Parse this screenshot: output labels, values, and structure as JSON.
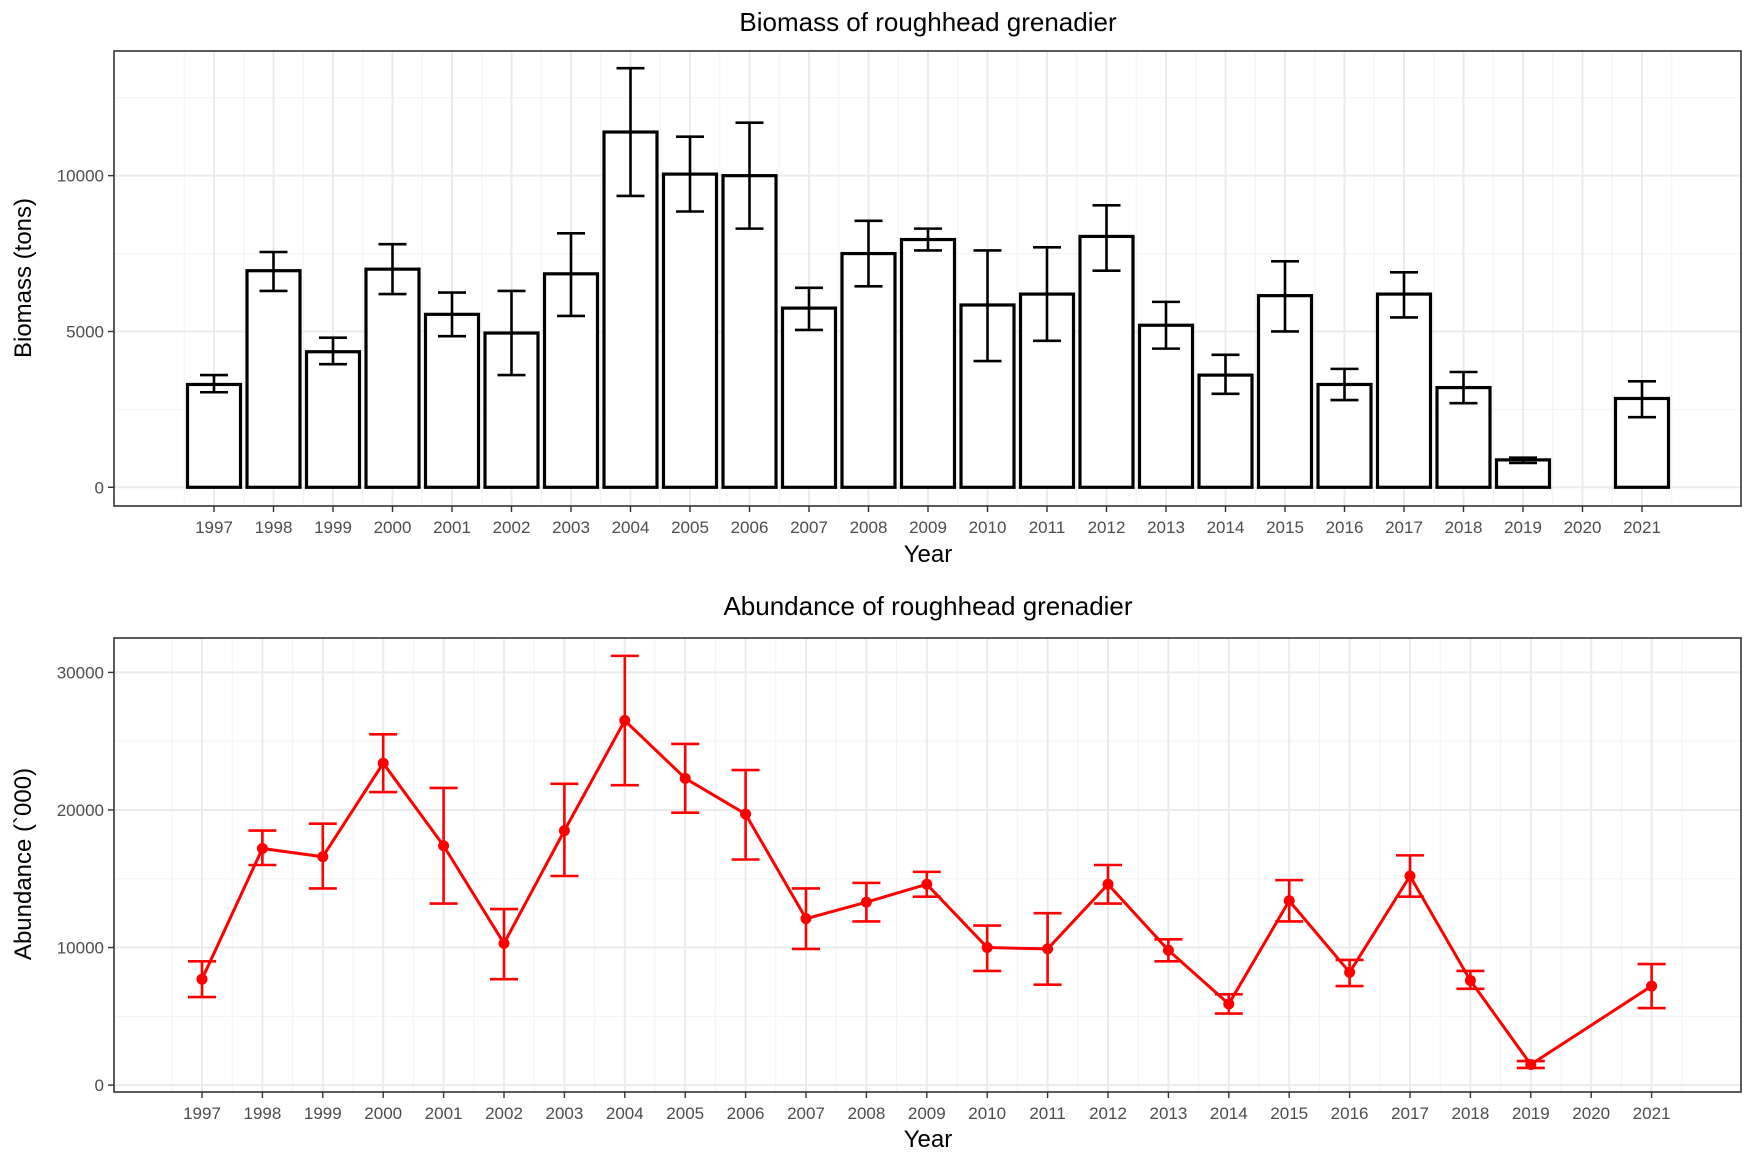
{
  "chart_data": [
    {
      "type": "bar",
      "title": "Biomass of roughhead grenadier",
      "xlabel": "Year",
      "ylabel": "Biomass (tons)",
      "ylim": [
        -600,
        14000
      ],
      "yticks": [
        0,
        5000,
        10000
      ],
      "grid": true,
      "categories": [
        "1997",
        "1998",
        "1999",
        "2000",
        "2001",
        "2002",
        "2003",
        "2004",
        "2005",
        "2006",
        "2007",
        "2008",
        "2009",
        "2010",
        "2011",
        "2012",
        "2013",
        "2014",
        "2015",
        "2016",
        "2017",
        "2018",
        "2019",
        "2020",
        "2021"
      ],
      "values": [
        3300,
        6950,
        4350,
        7000,
        5550,
        4950,
        6850,
        11400,
        10050,
        10000,
        5750,
        7500,
        7950,
        5850,
        6200,
        8050,
        5200,
        3600,
        6150,
        3300,
        6200,
        3200,
        880,
        null,
        2850
      ],
      "error_low": [
        3050,
        6300,
        3950,
        6200,
        4850,
        3600,
        5500,
        9350,
        8850,
        8300,
        5050,
        6450,
        7600,
        4050,
        4700,
        6950,
        4450,
        3000,
        5000,
        2800,
        5450,
        2700,
        780,
        null,
        2250
      ],
      "error_high": [
        3600,
        7550,
        4800,
        7800,
        6250,
        6300,
        8150,
        13450,
        11250,
        11700,
        6400,
        8550,
        8300,
        7600,
        7700,
        9050,
        5950,
        4250,
        7250,
        3800,
        6900,
        3700,
        950,
        null,
        3400
      ],
      "bar_fill": "#ffffff",
      "bar_stroke": "#000000",
      "errorbar_color": "#000000"
    },
    {
      "type": "line",
      "title": "Abundance of roughhead grenadier",
      "xlabel": "Year",
      "ylabel": "Abundance (`000)",
      "ylim": [
        -500,
        32500
      ],
      "yticks": [
        0,
        10000,
        20000,
        30000
      ],
      "grid": true,
      "categories": [
        "1997",
        "1998",
        "1999",
        "2000",
        "2001",
        "2002",
        "2003",
        "2004",
        "2005",
        "2006",
        "2007",
        "2008",
        "2009",
        "2010",
        "2011",
        "2012",
        "2013",
        "2014",
        "2015",
        "2016",
        "2017",
        "2018",
        "2019",
        "2020",
        "2021"
      ],
      "values": [
        7700,
        17200,
        16600,
        23400,
        17400,
        10300,
        18500,
        26500,
        22300,
        19700,
        12100,
        13300,
        14600,
        10000,
        9900,
        14600,
        9800,
        5900,
        13400,
        8200,
        15200,
        7600,
        1500,
        null,
        7200
      ],
      "error_low": [
        6400,
        16000,
        14300,
        21300,
        13200,
        7700,
        15200,
        21800,
        19800,
        16400,
        9900,
        11900,
        13700,
        8300,
        7300,
        13200,
        9000,
        5200,
        11900,
        7200,
        13700,
        7000,
        1250,
        null,
        5600
      ],
      "error_high": [
        9000,
        18500,
        19000,
        25500,
        21600,
        12800,
        21900,
        31200,
        24800,
        22900,
        14300,
        14700,
        15500,
        11600,
        12500,
        16000,
        10600,
        6600,
        14900,
        9100,
        16700,
        8300,
        1750,
        null,
        8800
      ],
      "color": "#ff0000"
    }
  ]
}
